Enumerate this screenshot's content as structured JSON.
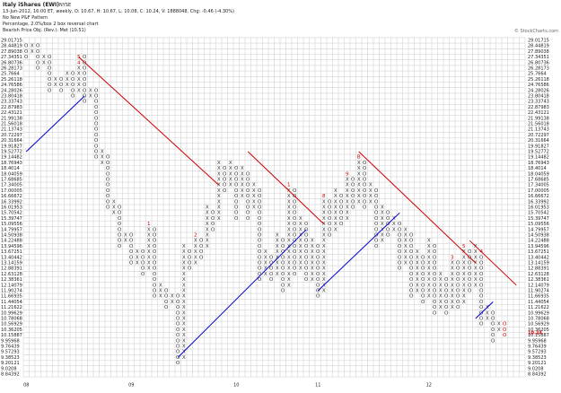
{
  "chart_data": {
    "type": "point-and-figure",
    "title": "Italy iShares (EWI)",
    "exchange": "NYSE",
    "info_lines": [
      "13-Jun-2012, 16:00 ET, weekly, O: 10.67, H: 10.67, L: 10.08, C: 10.24, V: 1888048, Chg: -0.46 (-4.30%)",
      "No New P&F Pattern",
      "Percentage, 2.0%/box 2 box reversal chart",
      "Bearish Price Obj. (Rev.): Met (10.51)"
    ],
    "credit": "© StockCharts.com",
    "log_scale": true,
    "ylim": [
      8.84392,
      29.01715
    ],
    "yticks": [
      29.01715,
      28.44819,
      27.89038,
      27.34351,
      26.80736,
      26.28173,
      25.7664,
      25.26118,
      24.76586,
      24.28026,
      23.80418,
      23.33743,
      22.87983,
      22.43121,
      21.99138,
      21.56018,
      21.13743,
      20.72297,
      20.31664,
      19.91827,
      19.52772,
      19.14482,
      18.76943,
      18.4014,
      18.04059,
      17.68685,
      17.34005,
      17.00005,
      16.66672,
      16.33992,
      16.01953,
      15.70542,
      15.39747,
      15.09556,
      14.79957,
      14.50938,
      14.22488,
      13.94596,
      13.67251,
      13.40442,
      13.14159,
      12.88391,
      12.63128,
      12.38361,
      12.14079,
      11.90274,
      11.66935,
      11.44054,
      11.21622,
      10.99629,
      10.78068,
      10.56929,
      10.36205,
      10.15887,
      9.95968,
      9.76439,
      9.57293,
      9.38523,
      9.20121,
      9.0208,
      8.84392
    ],
    "last_price": 10.24,
    "last_color": "#cc0000",
    "glyph_color": "#333333",
    "columns": [
      {
        "kind": "O",
        "high": 28.44819,
        "low": 27.34351,
        "year": "08"
      },
      {
        "kind": "X",
        "high": 28.44819,
        "low": 27.89038
      },
      {
        "kind": "O",
        "high": 28.44819,
        "low": 26.28173
      },
      {
        "kind": "X",
        "high": 27.34351,
        "low": 26.80736
      },
      {
        "kind": "O",
        "high": 27.34351,
        "low": 24.28026
      },
      {
        "kind": "X",
        "high": 25.26118,
        "low": 24.76586
      },
      {
        "kind": "O",
        "high": 25.26118,
        "low": 24.28026
      },
      {
        "kind": "X",
        "high": 25.7664,
        "low": 24.76586
      },
      {
        "kind": "O",
        "high": 25.7664,
        "low": 23.80418
      },
      {
        "kind": "X",
        "high": 27.34351,
        "low": 24.28026,
        "marks": [
          {
            "price": 27.34351,
            "label": "5"
          },
          {
            "price": 26.80736,
            "label": "4"
          }
        ]
      },
      {
        "kind": "O",
        "high": 27.34351,
        "low": 23.33743
      },
      {
        "kind": "X",
        "high": 24.28026,
        "low": 23.80418
      },
      {
        "kind": "O",
        "high": 24.28026,
        "low": 19.14482
      },
      {
        "kind": "X",
        "high": 19.52772,
        "low": 18.76943
      },
      {
        "kind": "O",
        "high": 19.14482,
        "low": 16.01953
      },
      {
        "kind": "X",
        "high": 16.33992,
        "low": 15.70542
      },
      {
        "kind": "O",
        "high": 16.01953,
        "low": 13.94596
      },
      {
        "kind": "X",
        "high": 14.50938,
        "low": 14.22488
      },
      {
        "kind": "O",
        "high": 14.50938,
        "low": 13.14159,
        "year": "09"
      },
      {
        "kind": "X",
        "high": 13.67251,
        "low": 13.14159
      },
      {
        "kind": "O",
        "high": 13.67251,
        "low": 12.63128
      },
      {
        "kind": "X",
        "high": 15.09556,
        "low": 12.88391,
        "marks": [
          {
            "price": 15.09556,
            "label": "1"
          }
        ]
      },
      {
        "kind": "O",
        "high": 14.79957,
        "low": 11.66935
      },
      {
        "kind": "X",
        "high": 12.14079,
        "low": 11.66935
      },
      {
        "kind": "O",
        "high": 11.90274,
        "low": 11.21622
      },
      {
        "kind": "X",
        "high": 11.66935,
        "low": 11.44054
      },
      {
        "kind": "O",
        "high": 11.66935,
        "low": 9.20121
      },
      {
        "kind": "X",
        "high": 13.94596,
        "low": 9.38523
      },
      {
        "kind": "O",
        "high": 13.67251,
        "low": 12.88391
      },
      {
        "kind": "X",
        "high": 14.50938,
        "low": 13.14159,
        "marks": [
          {
            "price": 14.50938,
            "label": "2"
          }
        ]
      },
      {
        "kind": "O",
        "high": 14.22488,
        "low": 13.40442
      },
      {
        "kind": "X",
        "high": 16.01953,
        "low": 13.94596
      },
      {
        "kind": "O",
        "high": 15.70542,
        "low": 14.79957
      },
      {
        "kind": "X",
        "high": 18.76943,
        "low": 15.39747
      },
      {
        "kind": "O",
        "high": 18.4014,
        "low": 17.00005
      },
      {
        "kind": "X",
        "high": 18.76943,
        "low": 17.34005
      },
      {
        "kind": "O",
        "high": 18.4014,
        "low": 15.39747,
        "year": "10"
      },
      {
        "kind": "X",
        "high": 18.4014,
        "low": 16.66672
      },
      {
        "kind": "O",
        "high": 18.04059,
        "low": 15.39747
      },
      {
        "kind": "X",
        "high": 17.34005,
        "low": 16.01953
      },
      {
        "kind": "O",
        "high": 17.00005,
        "low": 12.38361
      },
      {
        "kind": "X",
        "high": 13.67251,
        "low": 12.63128
      },
      {
        "kind": "O",
        "high": 13.40442,
        "low": 12.38361
      },
      {
        "kind": "X",
        "high": 14.50938,
        "low": 12.63128
      },
      {
        "kind": "O",
        "high": 14.22488,
        "low": 11.90274
      },
      {
        "kind": "X",
        "high": 17.34005,
        "low": 12.14079,
        "marks": [
          {
            "price": 17.34005,
            "label": "1"
          }
        ]
      },
      {
        "kind": "O",
        "high": 17.00005,
        "low": 12.63128
      },
      {
        "kind": "X",
        "high": 15.39747,
        "low": 12.88391
      },
      {
        "kind": "O",
        "high": 15.09556,
        "low": 12.38361
      },
      {
        "kind": "X",
        "high": 14.22488,
        "low": 12.38361
      },
      {
        "kind": "O",
        "high": 13.94596,
        "low": 11.66935,
        "year": "11"
      },
      {
        "kind": "X",
        "high": 16.66672,
        "low": 11.90274,
        "marks": [
          {
            "price": 16.66672,
            "label": "8"
          }
        ]
      },
      {
        "kind": "O",
        "high": 16.33992,
        "low": 14.50938
      },
      {
        "kind": "X",
        "high": 17.00005,
        "low": 14.79957
      },
      {
        "kind": "O",
        "high": 16.66672,
        "low": 15.09556
      },
      {
        "kind": "X",
        "high": 18.04059,
        "low": 15.39747,
        "marks": [
          {
            "price": 18.04059,
            "label": "9"
          }
        ]
      },
      {
        "kind": "O",
        "high": 17.68685,
        "low": 16.01953
      },
      {
        "kind": "X",
        "high": 19.14482,
        "low": 16.33992,
        "marks": [
          {
            "price": 19.14482,
            "label": "B"
          }
        ]
      },
      {
        "kind": "O",
        "high": 18.76943,
        "low": 16.01953
      },
      {
        "kind": "X",
        "high": 17.34005,
        "low": 16.33992
      },
      {
        "kind": "O",
        "high": 17.00005,
        "low": 13.94596
      },
      {
        "kind": "X",
        "high": 16.01953,
        "low": 14.22488
      },
      {
        "kind": "O",
        "high": 15.70542,
        "low": 14.50938
      },
      {
        "kind": "X",
        "high": 15.39747,
        "low": 14.79957
      },
      {
        "kind": "O",
        "high": 15.09556,
        "low": 12.88391
      },
      {
        "kind": "X",
        "high": 14.79957,
        "low": 13.14159
      },
      {
        "kind": "O",
        "high": 14.50938,
        "low": 11.66935
      },
      {
        "kind": "X",
        "high": 13.67251,
        "low": 11.90274
      },
      {
        "kind": "O",
        "high": 13.40442,
        "low": 11.44054
      },
      {
        "kind": "X",
        "high": 14.22488,
        "low": 11.66935,
        "year": "12"
      },
      {
        "kind": "O",
        "high": 13.94596,
        "low": 10.99629
      },
      {
        "kind": "X",
        "high": 12.63128,
        "low": 11.21622
      },
      {
        "kind": "O",
        "high": 12.38361,
        "low": 10.99629
      },
      {
        "kind": "X",
        "high": 13.40442,
        "low": 11.21622,
        "marks": [
          {
            "price": 13.40442,
            "label": "3"
          }
        ]
      },
      {
        "kind": "O",
        "high": 13.14159,
        "low": 11.21622
      },
      {
        "kind": "X",
        "high": 13.94596,
        "low": 11.44054,
        "marks": [
          {
            "price": 13.94596,
            "label": "5"
          }
        ]
      },
      {
        "kind": "O",
        "high": 13.67251,
        "low": 11.90274
      },
      {
        "kind": "X",
        "high": 13.94596,
        "low": 12.14079
      },
      {
        "kind": "O",
        "high": 13.67251,
        "low": 10.56929,
        "marks": [
          {
            "price": 13.67251,
            "label": "4"
          }
        ]
      },
      {
        "kind": "X",
        "high": 11.21622,
        "low": 10.78068
      },
      {
        "kind": "O",
        "high": 10.99629,
        "low": 9.95968
      },
      {
        "kind": "X",
        "high": 10.56929,
        "low": 10.36205
      },
      {
        "kind": "O",
        "high": 10.56929,
        "low": 10.15887,
        "color": "#cc0000"
      }
    ],
    "trendlines": [
      {
        "color": "#cc0000",
        "columns": [
          9,
          33
        ],
        "prices": [
          27.34351,
          17.34005
        ]
      },
      {
        "color": "#cc0000",
        "columns": [
          38,
          51
        ],
        "prices": [
          19.52772,
          15.09556
        ]
      },
      {
        "color": "#cc0000",
        "columns": [
          57,
          77
        ],
        "prices": [
          19.52772,
          13.14159
        ]
      },
      {
        "color": "#cc0000",
        "columns": [
          76,
          84
        ],
        "prices": [
          14.22488,
          12.14079
        ]
      },
      {
        "color": "#0000cc",
        "columns": [
          0,
          10
        ],
        "prices": [
          19.52772,
          23.80418
        ]
      },
      {
        "color": "#0000cc",
        "columns": [
          26,
          48
        ],
        "prices": [
          9.38523,
          14.79957
        ]
      },
      {
        "color": "#0000cc",
        "columns": [
          50,
          64
        ],
        "prices": [
          11.90274,
          15.70542
        ]
      },
      {
        "color": "#0000cc",
        "columns": [
          77,
          80
        ],
        "prices": [
          10.78068,
          11.44054
        ]
      }
    ]
  }
}
